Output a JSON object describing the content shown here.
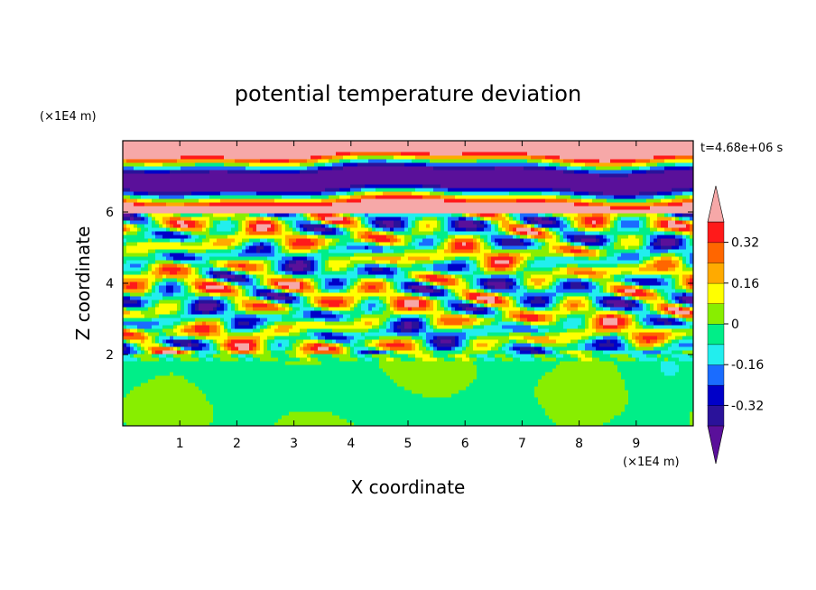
{
  "chart_data": {
    "type": "heatmap",
    "title": "potential temperature deviation",
    "xlabel": "X coordinate",
    "ylabel": "Z coordinate",
    "x_unit": "(×1E4 m)",
    "y_unit": "(×1E4 m)",
    "time_label": "t=4.68e+06 s",
    "xlim": [
      0,
      10
    ],
    "ylim": [
      0,
      8
    ],
    "x_ticks": [
      "1",
      "2",
      "3",
      "4",
      "5",
      "6",
      "7",
      "8",
      "9"
    ],
    "y_ticks": [
      "2",
      "4",
      "6"
    ],
    "x_tick_values": [
      1,
      2,
      3,
      4,
      5,
      6,
      7,
      8,
      9
    ],
    "y_tick_values": [
      2,
      4,
      6
    ],
    "colorbar": {
      "tick_labels": [
        "0.32",
        "0.16",
        "0",
        "-0.16",
        "-0.32"
      ],
      "tick_values": [
        0.32,
        0.16,
        0,
        -0.16,
        -0.32
      ],
      "levels": [
        -0.4,
        -0.32,
        -0.24,
        -0.16,
        -0.08,
        0,
        0.08,
        0.16,
        0.24,
        0.32,
        0.4
      ],
      "colors": [
        "#5a109a",
        "#2a129a",
        "#0000c8",
        "#1a6cff",
        "#22eeee",
        "#00ee88",
        "#88ee00",
        "#ffff00",
        "#ffaa00",
        "#ff6600",
        "#ff1a1a",
        "#f6a8a8"
      ],
      "extend": "both"
    },
    "bands": [
      {
        "z_min": 0.0,
        "z_max": 2.05,
        "pattern": "smooth",
        "values": [
          0.04,
          -0.02
        ]
      },
      {
        "z_min": 2.05,
        "z_max": 6.0,
        "pattern": "turbulent"
      },
      {
        "z_min": 6.0,
        "z_max": 8.0,
        "pattern": "layered",
        "values": [
          0.45,
          -0.45
        ]
      }
    ]
  }
}
